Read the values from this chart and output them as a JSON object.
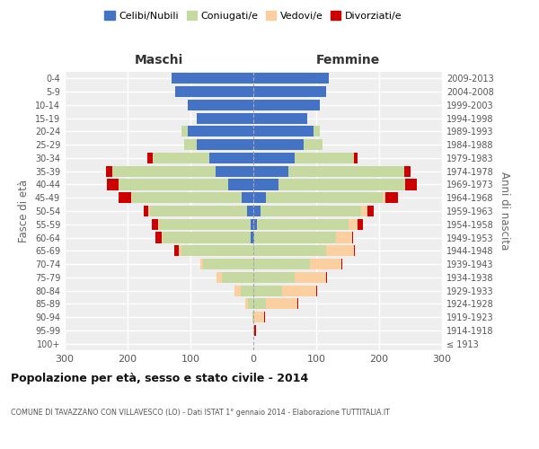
{
  "age_groups": [
    "100+",
    "95-99",
    "90-94",
    "85-89",
    "80-84",
    "75-79",
    "70-74",
    "65-69",
    "60-64",
    "55-59",
    "50-54",
    "45-49",
    "40-44",
    "35-39",
    "30-34",
    "25-29",
    "20-24",
    "15-19",
    "10-14",
    "5-9",
    "0-4"
  ],
  "birth_years": [
    "≤ 1913",
    "1914-1918",
    "1919-1923",
    "1924-1928",
    "1929-1933",
    "1934-1938",
    "1939-1943",
    "1944-1948",
    "1949-1953",
    "1954-1958",
    "1959-1963",
    "1964-1968",
    "1969-1973",
    "1974-1978",
    "1979-1983",
    "1984-1988",
    "1989-1993",
    "1994-1998",
    "1999-2003",
    "2004-2008",
    "2009-2013"
  ],
  "maschi_celibi": [
    0,
    0,
    0,
    0,
    0,
    0,
    0,
    0,
    4,
    5,
    10,
    18,
    40,
    60,
    70,
    90,
    105,
    90,
    105,
    125,
    130
  ],
  "maschi_coniugati": [
    0,
    0,
    2,
    8,
    20,
    50,
    80,
    115,
    140,
    145,
    155,
    175,
    175,
    165,
    90,
    20,
    10,
    0,
    0,
    0,
    0
  ],
  "maschi_vedovi": [
    0,
    0,
    0,
    5,
    10,
    8,
    5,
    3,
    2,
    2,
    2,
    2,
    0,
    0,
    0,
    0,
    0,
    0,
    0,
    0,
    0
  ],
  "maschi_divorziati": [
    0,
    0,
    0,
    0,
    0,
    0,
    0,
    8,
    10,
    10,
    8,
    20,
    18,
    10,
    8,
    0,
    0,
    0,
    0,
    0,
    0
  ],
  "femmine_celibi": [
    0,
    0,
    0,
    0,
    0,
    0,
    0,
    0,
    2,
    6,
    12,
    20,
    40,
    55,
    65,
    80,
    95,
    85,
    105,
    115,
    120
  ],
  "femmine_coniugati": [
    0,
    0,
    2,
    20,
    45,
    65,
    90,
    115,
    130,
    145,
    160,
    185,
    200,
    185,
    95,
    30,
    10,
    0,
    0,
    0,
    0
  ],
  "femmine_vedovi": [
    0,
    2,
    15,
    50,
    55,
    50,
    50,
    45,
    25,
    15,
    10,
    5,
    2,
    0,
    0,
    0,
    0,
    0,
    0,
    0,
    0
  ],
  "femmine_divorziati": [
    0,
    2,
    2,
    2,
    2,
    2,
    2,
    2,
    2,
    8,
    10,
    20,
    18,
    10,
    5,
    0,
    0,
    0,
    0,
    0,
    0
  ],
  "colors": {
    "celibi": "#4472C4",
    "coniugati": "#C5D9A0",
    "vedovi": "#FBCF9F",
    "divorziati": "#CC0000"
  },
  "title": "Popolazione per età, sesso e stato civile - 2014",
  "subtitle": "COMUNE DI TAVAZZANO CON VILLAVESCO (LO) - Dati ISTAT 1° gennaio 2014 - Elaborazione TUTTITALIA.IT",
  "xlabel_left": "Maschi",
  "xlabel_right": "Femmine",
  "ylabel_left": "Fasce di età",
  "ylabel_right": "Anni di nascita",
  "xlim": 300,
  "background_color": "#ffffff",
  "plot_bg_color": "#eeeeee",
  "grid_color": "#ffffff"
}
